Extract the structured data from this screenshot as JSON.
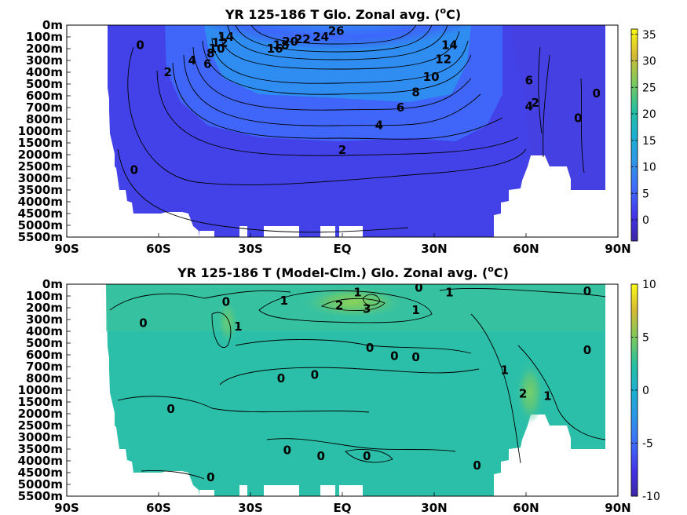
{
  "chart_data": [
    {
      "type": "heatmap",
      "title": "YR 125-186 T Glo. Zonal avg.",
      "title_unit_prefix": "(",
      "title_unit_sup": "o",
      "title_unit_suffix": "C)",
      "x_tick_labels": [
        "90S",
        "60S",
        "30S",
        "EQ",
        "30N",
        "60N",
        "90N"
      ],
      "x_tick_values": [
        -90,
        -60,
        -30,
        0,
        30,
        60,
        90
      ],
      "y_tick_labels": [
        "0m",
        "100m",
        "200m",
        "300m",
        "400m",
        "500m",
        "600m",
        "700m",
        "800m",
        "1000m",
        "1500m",
        "2000m",
        "2500m",
        "3000m",
        "3500m",
        "4000m",
        "4500m",
        "5000m",
        "5500m"
      ],
      "xlim": [
        -90,
        90
      ],
      "colorbar": {
        "min": -4,
        "max": 36,
        "ticks": [
          0,
          5,
          10,
          15,
          20,
          25,
          30,
          35
        ],
        "tick_labels": [
          "0",
          "5",
          "10",
          "15",
          "20",
          "25",
          "30",
          "35"
        ]
      },
      "contour_labels": [
        {
          "text": "26",
          "lat": -2,
          "depth_index": 0.5
        },
        {
          "text": "24",
          "lat": -7,
          "depth_index": 1.0
        },
        {
          "text": "22",
          "lat": -13,
          "depth_index": 1.2
        },
        {
          "text": "20",
          "lat": -17,
          "depth_index": 1.4
        },
        {
          "text": "18",
          "lat": -20,
          "depth_index": 1.7
        },
        {
          "text": "16",
          "lat": -22,
          "depth_index": 2.0
        },
        {
          "text": "14",
          "lat": -38,
          "depth_index": 1.0
        },
        {
          "text": "12",
          "lat": -40,
          "depth_index": 1.5
        },
        {
          "text": "10",
          "lat": -41,
          "depth_index": 2.0
        },
        {
          "text": "8",
          "lat": -43,
          "depth_index": 2.4
        },
        {
          "text": "6",
          "lat": -44,
          "depth_index": 3.3
        },
        {
          "text": "4",
          "lat": -49,
          "depth_index": 3.0
        },
        {
          "text": "2",
          "lat": -57,
          "depth_index": 4.0
        },
        {
          "text": "0",
          "lat": -66,
          "depth_index": 1.7
        },
        {
          "text": "14",
          "lat": 35,
          "depth_index": 1.7
        },
        {
          "text": "12",
          "lat": 33,
          "depth_index": 2.9
        },
        {
          "text": "10",
          "lat": 29,
          "depth_index": 4.4
        },
        {
          "text": "8",
          "lat": 24,
          "depth_index": 5.7
        },
        {
          "text": "6",
          "lat": 19,
          "depth_index": 7.0
        },
        {
          "text": "4",
          "lat": 12,
          "depth_index": 8.5
        },
        {
          "text": "2",
          "lat": 0,
          "depth_index": 10.6
        },
        {
          "text": "0",
          "lat": -68,
          "depth_index": 12.3
        },
        {
          "text": "6",
          "lat": 61,
          "depth_index": 4.7
        },
        {
          "text": "4",
          "lat": 61,
          "depth_index": 6.9
        },
        {
          "text": "2",
          "lat": 63,
          "depth_index": 6.6
        },
        {
          "text": "0",
          "lat": 83,
          "depth_index": 5.8
        },
        {
          "text": "0",
          "lat": 77,
          "depth_index": 7.9
        }
      ]
    },
    {
      "type": "heatmap",
      "title": "YR 125-186 T (Model-Clm.) Glo. Zonal avg.",
      "title_unit_prefix": "(",
      "title_unit_sup": "o",
      "title_unit_suffix": "C)",
      "x_tick_labels": [
        "90S",
        "60S",
        "30S",
        "EQ",
        "30N",
        "60N",
        "90N"
      ],
      "x_tick_values": [
        -90,
        -60,
        -30,
        0,
        30,
        60,
        90
      ],
      "y_tick_labels": [
        "0m",
        "100m",
        "200m",
        "300m",
        "400m",
        "500m",
        "600m",
        "700m",
        "800m",
        "1000m",
        "1500m",
        "2000m",
        "2500m",
        "3000m",
        "3500m",
        "4000m",
        "4500m",
        "5000m",
        "5500m"
      ],
      "xlim": [
        -90,
        90
      ],
      "colorbar": {
        "min": -10,
        "max": 10,
        "ticks": [
          -10,
          -5,
          0,
          5,
          10
        ],
        "tick_labels": [
          "-10",
          "-5",
          "0",
          "5",
          "10"
        ]
      },
      "contour_labels": [
        {
          "text": "1",
          "lat": 5,
          "depth_index": 0.7
        },
        {
          "text": "0",
          "lat": 25,
          "depth_index": 0.3
        },
        {
          "text": "1",
          "lat": 35,
          "depth_index": 0.7
        },
        {
          "text": "0",
          "lat": 80,
          "depth_index": 0.6
        },
        {
          "text": "1",
          "lat": -19,
          "depth_index": 1.4
        },
        {
          "text": "2",
          "lat": -1,
          "depth_index": 1.8
        },
        {
          "text": "3",
          "lat": 8,
          "depth_index": 2.1
        },
        {
          "text": "0",
          "lat": -38,
          "depth_index": 1.5
        },
        {
          "text": "1",
          "lat": 24,
          "depth_index": 2.2
        },
        {
          "text": "1",
          "lat": -34,
          "depth_index": 3.6
        },
        {
          "text": "0",
          "lat": -65,
          "depth_index": 3.3
        },
        {
          "text": "0",
          "lat": 9,
          "depth_index": 5.4
        },
        {
          "text": "0",
          "lat": 17,
          "depth_index": 6.1
        },
        {
          "text": "0",
          "lat": 24,
          "depth_index": 6.2
        },
        {
          "text": "0",
          "lat": 80,
          "depth_index": 5.6
        },
        {
          "text": "1",
          "lat": 53,
          "depth_index": 7.3
        },
        {
          "text": "0",
          "lat": -20,
          "depth_index": 8.0
        },
        {
          "text": "0",
          "lat": -9,
          "depth_index": 7.7
        },
        {
          "text": "2",
          "lat": 59,
          "depth_index": 9.3
        },
        {
          "text": "1",
          "lat": 67,
          "depth_index": 9.5
        },
        {
          "text": "0",
          "lat": -56,
          "depth_index": 10.6
        },
        {
          "text": "0",
          "lat": -18,
          "depth_index": 14.1
        },
        {
          "text": "0",
          "lat": -7,
          "depth_index": 14.6
        },
        {
          "text": "0",
          "lat": 8,
          "depth_index": 14.6
        },
        {
          "text": "0",
          "lat": 44,
          "depth_index": 15.4
        },
        {
          "text": "0",
          "lat": -43,
          "depth_index": 16.4
        }
      ]
    }
  ]
}
